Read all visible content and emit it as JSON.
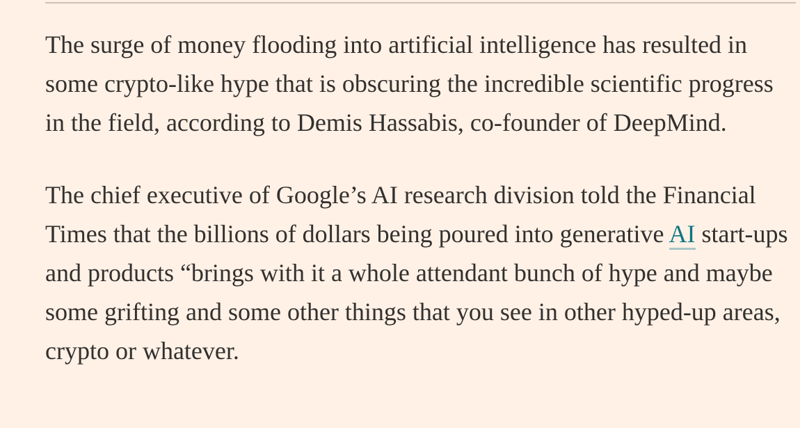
{
  "article": {
    "paragraphs": [
      {
        "text": "The surge of money flooding into artificial intelligence has resulted in some crypto-like hype that is obscuring the incredible scientific progress in the field, according to Demis Hassabis, co-founder of DeepMind."
      },
      {
        "before_link": "The chief executive of Google’s AI research division told the Financial Times that the billions of dollars being poured into generative ",
        "link_text": "AI",
        "after_link": " start-ups and products “brings with it a whole attendant bunch of hype and maybe some grifting and some other things that you see in other hyped-up areas, crypto or whatever."
      }
    ]
  },
  "colors": {
    "background": "#fff1e6",
    "text": "#33302e",
    "link": "#0d7680",
    "rule": "#ccc1b7"
  }
}
